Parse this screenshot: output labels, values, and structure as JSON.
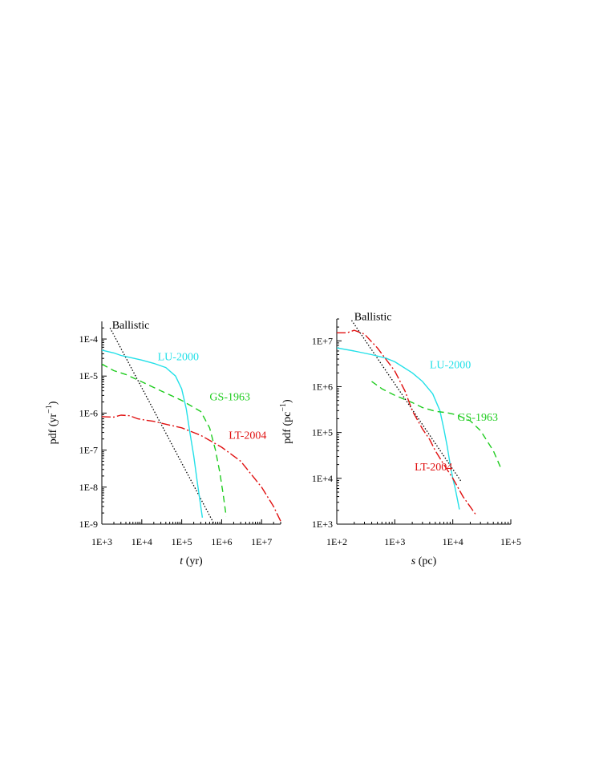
{
  "colors": {
    "ballistic": "#000000",
    "lu2000": "#22e0e8",
    "gs1963": "#1fcc1f",
    "lt2004": "#e01010"
  },
  "chart_data": [
    {
      "type": "line",
      "xscale": "log",
      "yscale": "log",
      "xlim": [
        1000,
        30000000
      ],
      "ylim": [
        1e-09,
        0.0003
      ],
      "xticks": [
        1000,
        10000,
        100000,
        1000000,
        10000000
      ],
      "xtick_labels": [
        "1E+3",
        "1E+4",
        "1E+5",
        "1E+6",
        "1E+7"
      ],
      "yticks": [
        1e-09,
        1e-08,
        1e-07,
        1e-06,
        1e-05,
        0.0001
      ],
      "ytick_labels": [
        "1E-9",
        "1E-8",
        "1E-7",
        "1E-6",
        "1E-5",
        "1E-4"
      ],
      "xlabel_var": "t",
      "xlabel_unit": " (yr)",
      "ylabel": "pdf (yr",
      "ylabel_sup": "−1",
      "ylabel_close": ")",
      "grid": false,
      "series": [
        {
          "name": "Ballistic",
          "style": "dotted",
          "color_key": "ballistic",
          "x": [
            1600,
            650000
          ],
          "y": [
            0.0002,
            1e-09
          ]
        },
        {
          "name": "LU-2000",
          "style": "solid",
          "color_key": "lu2000",
          "x": [
            1000,
            2000,
            3000,
            5000,
            10000,
            20000,
            40000,
            70000,
            100000,
            130000,
            160000,
            200000,
            250000,
            330000
          ],
          "y": [
            5e-05,
            4.2e-05,
            3.6e-05,
            3.2e-05,
            2.7e-05,
            2.2e-05,
            1.7e-05,
            1e-05,
            4.5e-06,
            1.3e-06,
            3e-07,
            7e-08,
            1.2e-08,
            1.5e-09
          ]
        },
        {
          "name": "GS-1963",
          "style": "dashed",
          "color_key": "gs1963",
          "x": [
            1000,
            2000,
            4000,
            10000,
            30000,
            100000,
            300000,
            500000,
            700000,
            900000,
            1100000,
            1300000
          ],
          "y": [
            2.1e-05,
            1.4e-05,
            1.1e-05,
            7e-06,
            4e-06,
            2.2e-06,
            1.1e-06,
            4e-07,
            1e-07,
            2.5e-08,
            6e-09,
            1.6e-09
          ]
        },
        {
          "name": "LT-2004",
          "style": "dashdot",
          "color_key": "lt2004",
          "x": [
            1000,
            2000,
            3000,
            5000,
            8000,
            12000,
            20000,
            40000,
            100000,
            300000,
            1000000,
            3000000,
            10000000,
            20000000,
            30000000
          ],
          "y": [
            8e-07,
            7.8e-07,
            8.8e-07,
            8.5e-07,
            7e-07,
            6.5e-07,
            6e-07,
            5e-07,
            4e-07,
            2.5e-07,
            1.2e-07,
            5e-08,
            1e-08,
            3e-09,
            1.2e-09
          ]
        }
      ],
      "annotations": [
        {
          "text": "Ballistic",
          "x": 1800,
          "y": 0.00019,
          "color_key": "ballistic"
        },
        {
          "text": "LU-2000",
          "x": 25000,
          "y": 2.7e-05,
          "color_key": "lu2000"
        },
        {
          "text": "GS-1963",
          "x": 500000,
          "y": 2.2e-06,
          "color_key": "gs1963"
        },
        {
          "text": "LT-2004",
          "x": 1500000,
          "y": 2e-07,
          "color_key": "lt2004"
        }
      ]
    },
    {
      "type": "line",
      "xscale": "log",
      "yscale": "log",
      "xlim": [
        100,
        100000
      ],
      "ylim": [
        1000,
        30000000
      ],
      "xticks": [
        100,
        1000,
        10000,
        100000
      ],
      "xtick_labels": [
        "1E+2",
        "1E+3",
        "1E+4",
        "1E+5"
      ],
      "yticks": [
        1000,
        10000,
        100000,
        1000000,
        10000000
      ],
      "ytick_labels": [
        "1E+3",
        "1E+4",
        "1E+5",
        "1E+6",
        "1E+7"
      ],
      "xlabel_var": "s",
      "xlabel_unit": " (pc)",
      "ylabel": "pdf (pc",
      "ylabel_sup": "−1",
      "ylabel_close": ")",
      "grid": false,
      "series": [
        {
          "name": "Ballistic",
          "style": "dotted",
          "color_key": "ballistic",
          "x": [
            180,
            14000
          ],
          "y": [
            28000000,
            8500
          ]
        },
        {
          "name": "LU-2000",
          "style": "solid",
          "color_key": "lu2000",
          "x": [
            100,
            200,
            400,
            700,
            1000,
            2000,
            3000,
            4500,
            6000,
            7000,
            8000,
            9000,
            10000,
            11000,
            12000,
            13000
          ],
          "y": [
            7000000,
            6000000,
            5000000,
            4200000,
            3500000,
            2000000,
            1300000,
            700000,
            300000,
            120000,
            50000,
            20000,
            10000,
            6000,
            3500,
            2100
          ]
        },
        {
          "name": "GS-1963",
          "style": "dashed",
          "color_key": "gs1963",
          "x": [
            400,
            600,
            1000,
            2000,
            3000,
            5000,
            8000,
            12000,
            20000,
            30000,
            50000,
            70000
          ],
          "y": [
            1300000,
            900000,
            650000,
            450000,
            350000,
            290000,
            270000,
            240000,
            180000,
            110000,
            40000,
            15000
          ]
        },
        {
          "name": "LT-2004",
          "style": "dashdot",
          "color_key": "lt2004",
          "x": [
            100,
            150,
            200,
            300,
            500,
            700,
            1000,
            1500,
            2000,
            3000,
            4000,
            5000,
            7000,
            10000,
            15000,
            25000
          ],
          "y": [
            15000000,
            15000000,
            17000000,
            14000000,
            7000000,
            4000000,
            2200000,
            800000,
            300000,
            120000,
            70000,
            40000,
            20000,
            10000,
            4000,
            1600
          ]
        }
      ],
      "annotations": [
        {
          "text": "Ballistic",
          "x": 200,
          "y": 28000000,
          "color_key": "ballistic"
        },
        {
          "text": "LU-2000",
          "x": 4000,
          "y": 2500000,
          "color_key": "lu2000"
        },
        {
          "text": "GS-1963",
          "x": 12000,
          "y": 180000,
          "color_key": "gs1963"
        },
        {
          "text": "LT-2004",
          "x": 2200,
          "y": 15000,
          "color_key": "lt2004"
        }
      ]
    }
  ]
}
